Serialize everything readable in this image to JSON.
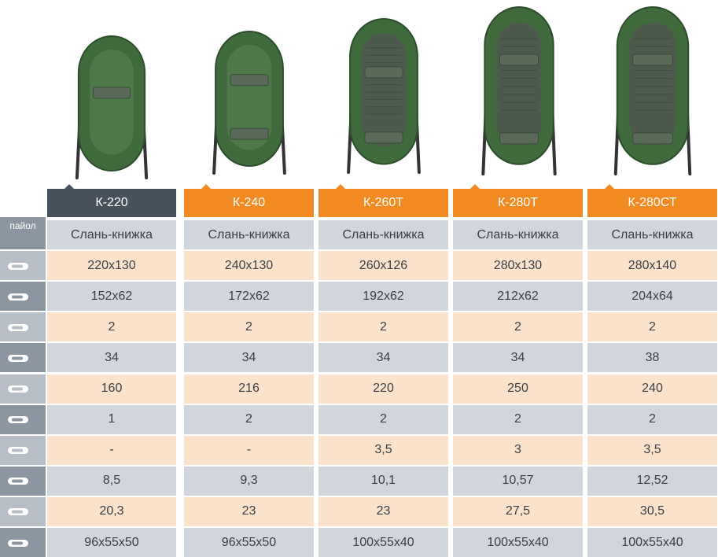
{
  "row_label_first": "пайол",
  "icons": [
    "boat-length-icon",
    "boat-inner-size-icon",
    "boat-count-icon",
    "tube-diameter-icon",
    "load-capacity-icon",
    "persons-icon",
    "motor-power-icon",
    "boat-weight-icon",
    "package-weight-icon",
    "package-size-icon"
  ],
  "models": [
    {
      "name": "К-220",
      "header_color": "dark",
      "values": [
        "Слань-книжка",
        "220х130",
        "152х62",
        "2",
        "34",
        "160",
        "1",
        "-",
        "8,5",
        "20,3",
        "96х55х50"
      ]
    },
    {
      "name": "К-240",
      "header_color": "orange",
      "values": [
        "Слань-книжка",
        "240х130",
        "172х62",
        "2",
        "34",
        "216",
        "2",
        "-",
        "9,3",
        "23",
        "96х55х50"
      ]
    },
    {
      "name": "К-260Т",
      "header_color": "orange",
      "values": [
        "Слань-книжка",
        "260х126",
        "192х62",
        "2",
        "34",
        "220",
        "2",
        "3,5",
        "10,1",
        "23",
        "100х55х40"
      ]
    },
    {
      "name": "К-280Т",
      "header_color": "orange",
      "values": [
        "Слань-книжка",
        "280х130",
        "212х62",
        "2",
        "34",
        "250",
        "2",
        "3",
        "10,57",
        "27,5",
        "100х55х40"
      ]
    },
    {
      "name": "К-280СТ",
      "header_color": "orange",
      "values": [
        "Слань-книжка",
        "280х140",
        "204х64",
        "2",
        "38",
        "240",
        "2",
        "3,5",
        "12,52",
        "30,5",
        "100х55х40"
      ]
    }
  ],
  "colors": {
    "header_dark": "#47525c",
    "header_orange": "#f08a21",
    "row_grey": "#d0d6dc",
    "row_peach": "#fbe3cb",
    "label_col": "#8c96a0",
    "boat_green": "#3f6b3c"
  }
}
